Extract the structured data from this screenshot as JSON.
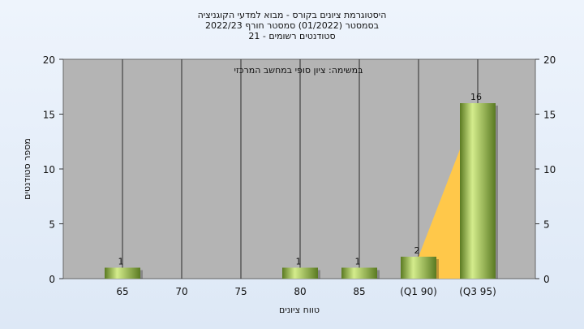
{
  "chart_data": {
    "type": "bar",
    "title": [
      "היסטוגרמת ציונים בקורס - מבוא למדעי הקוגניציה",
      "בסמסטר  (01/2022)  סמסטר חורף 2022/23",
      "סטודנטים רשומים - 21"
    ],
    "annotation": "במשימה: ציון סופי במחשב המרכזי",
    "xlabel": "טווח ציונים",
    "ylabel": "מספר סטודנטים",
    "categories": [
      "65",
      "70",
      "75",
      "80",
      "85",
      "(Q1 90)",
      "(Q3 95)"
    ],
    "values": [
      1,
      0,
      0,
      1,
      1,
      2,
      16
    ],
    "data_labels": [
      "1",
      "",
      "",
      "1",
      "1",
      "2",
      "16"
    ],
    "ylim": [
      0,
      20
    ],
    "yticks": [
      0,
      5,
      10,
      15,
      20
    ],
    "grid": true,
    "colors": {
      "plot_bg": "#b4b4b4",
      "bar_light": "#d4ec8c",
      "bar_dark": "#5a7a22",
      "area": "#ffc84a",
      "grid": "#2a2a2a"
    }
  }
}
